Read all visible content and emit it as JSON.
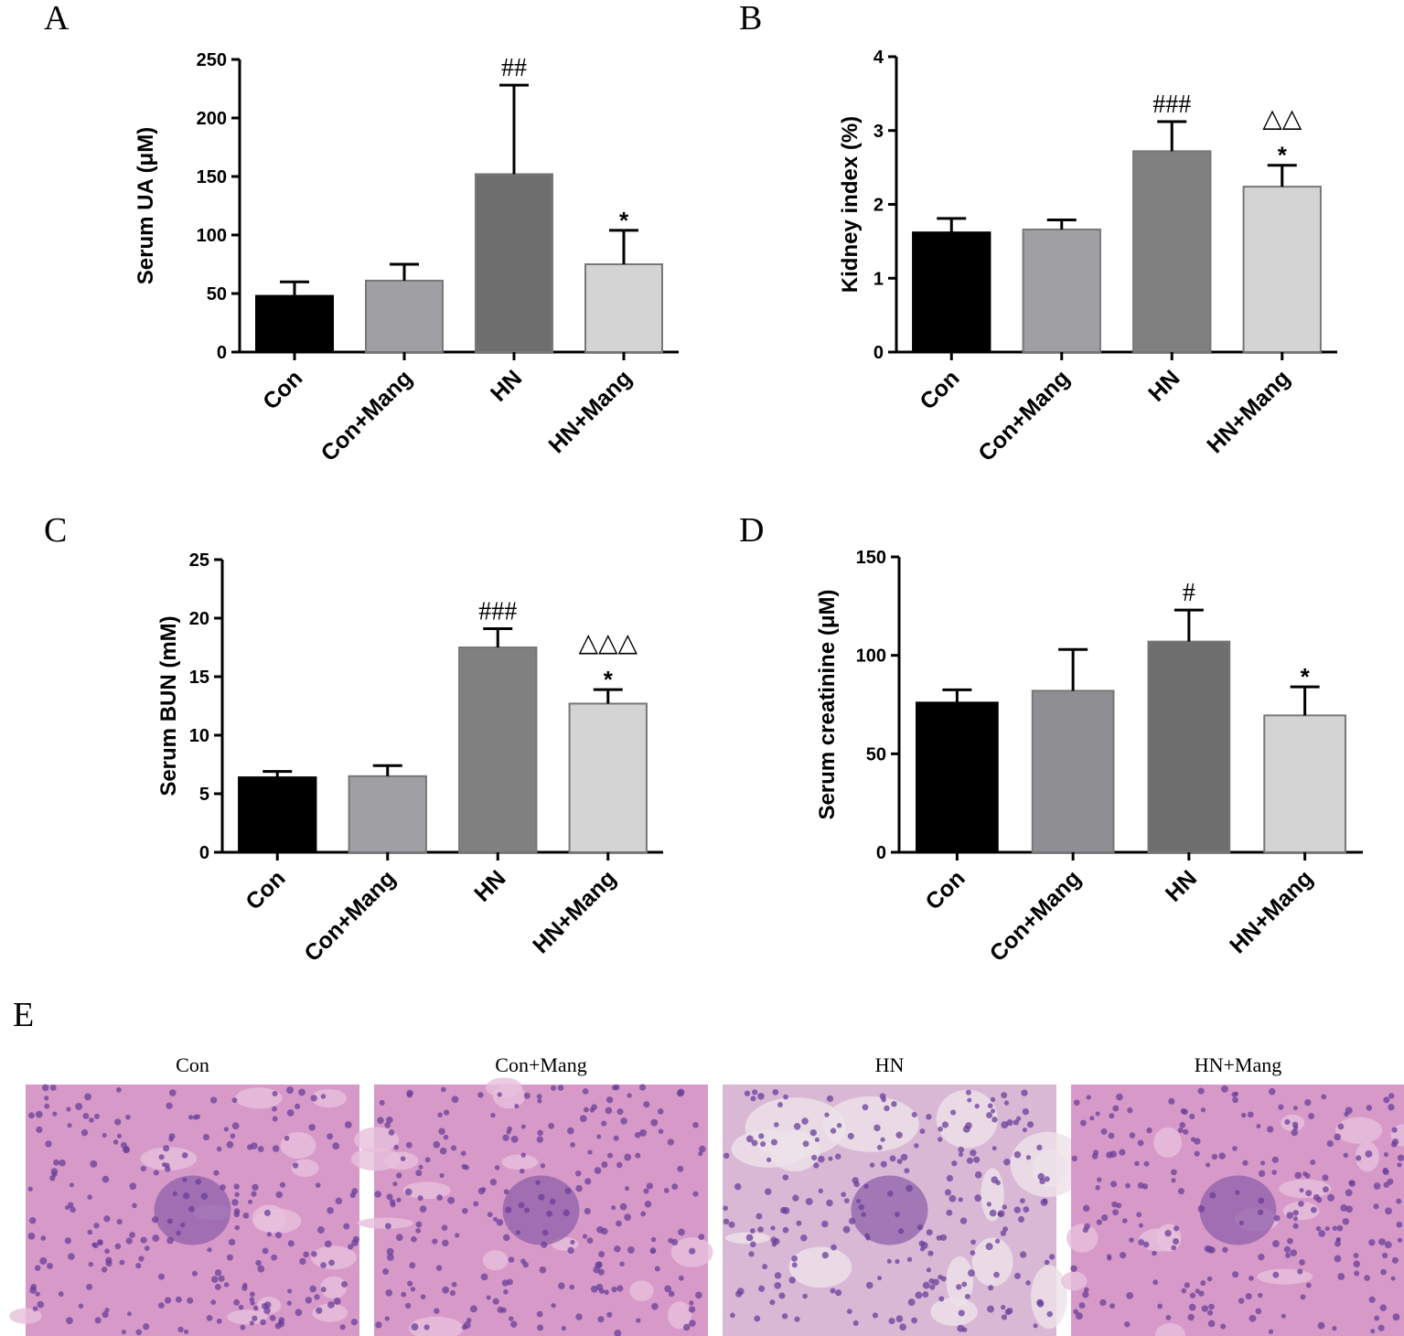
{
  "chart_data": [
    {
      "type": "bar",
      "panel": "A",
      "ylabel": "Serum UA (μM)",
      "categories": [
        "Con",
        "Con+Mang",
        "HN",
        "HN+Mang"
      ],
      "values": [
        48,
        61,
        152,
        75
      ],
      "errors": [
        12,
        14,
        76,
        29
      ],
      "colors": [
        "#000000",
        "#a0a0a4",
        "#6e6e6e",
        "#d4d4d4"
      ],
      "annotations": [
        null,
        null,
        [
          "##"
        ],
        [
          "*"
        ]
      ],
      "ylim": [
        0,
        250
      ],
      "yticks": [
        0,
        50,
        100,
        150,
        200,
        250
      ]
    },
    {
      "type": "bar",
      "panel": "B",
      "ylabel": "Kidney index (%)",
      "categories": [
        "Con",
        "Con+Mang",
        "HN",
        "HN+Mang"
      ],
      "values": [
        1.62,
        1.66,
        2.72,
        2.24
      ],
      "errors": [
        0.19,
        0.13,
        0.4,
        0.29
      ],
      "colors": [
        "#000000",
        "#a0a0a4",
        "#808080",
        "#d4d4d4"
      ],
      "annotations": [
        null,
        null,
        [
          "###"
        ],
        [
          "△△",
          "*"
        ]
      ],
      "ylim": [
        0,
        4
      ],
      "yticks": [
        0,
        1,
        2,
        3,
        4
      ]
    },
    {
      "type": "bar",
      "panel": "C",
      "ylabel": "Serum BUN (mM)",
      "categories": [
        "Con",
        "Con+Mang",
        "HN",
        "HN+Mang"
      ],
      "values": [
        6.4,
        6.5,
        17.5,
        12.7
      ],
      "errors": [
        0.5,
        0.9,
        1.6,
        1.2
      ],
      "colors": [
        "#000000",
        "#a0a0a4",
        "#808080",
        "#d4d4d4"
      ],
      "annotations": [
        null,
        null,
        [
          "###"
        ],
        [
          "△△△",
          "*"
        ]
      ],
      "ylim": [
        0,
        25
      ],
      "yticks": [
        0,
        5,
        10,
        15,
        20,
        25
      ]
    },
    {
      "type": "bar",
      "panel": "D",
      "ylabel": "Serum creatinine (μM)",
      "categories": [
        "Con",
        "Con+Mang",
        "HN",
        "HN+Mang"
      ],
      "values": [
        76,
        82,
        107,
        69.5
      ],
      "errors": [
        6.5,
        21,
        16,
        14.5
      ],
      "colors": [
        "#000000",
        "#8f8f93",
        "#6e6e6e",
        "#d4d4d4"
      ],
      "annotations": [
        null,
        null,
        [
          "#"
        ],
        [
          "*"
        ]
      ],
      "ylim": [
        0,
        150
      ],
      "yticks": [
        0,
        50,
        100,
        150
      ]
    }
  ],
  "histology": {
    "panel": "E",
    "titles": [
      "Con",
      "Con+Mang",
      "HN",
      "HN+Mang"
    ]
  }
}
